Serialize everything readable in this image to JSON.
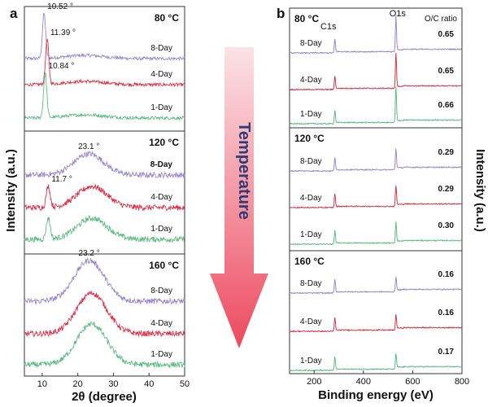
{
  "panel_labels": {
    "a": "a",
    "b": "b"
  },
  "arrow_label": "Temperature",
  "colors": {
    "8-Day": "#9a88cc",
    "4-Day": "#d8344a",
    "1-Day": "#5dbb82"
  },
  "chart_data": [
    {
      "id": "a",
      "type": "line",
      "xlabel": "2θ (degree)",
      "ylabel": "Intensity (a.u.)",
      "xlim": [
        5,
        50
      ],
      "xticks": [
        "10",
        "20",
        "30",
        "40",
        "50"
      ],
      "yticks": "none",
      "grid": false,
      "panels": [
        {
          "temperature": "80 °C",
          "series": [
            {
              "name": "8-Day",
              "peaks": [
                {
                  "x": 10.52,
                  "label": "10.52 °"
                }
              ]
            },
            {
              "name": "4-Day",
              "peaks": [
                {
                  "x": 11.39,
                  "label": "11.39 °"
                }
              ]
            },
            {
              "name": "1-Day",
              "peaks": [
                {
                  "x": 10.84,
                  "label": "10.84 °"
                }
              ]
            }
          ]
        },
        {
          "temperature": "120 °C",
          "series": [
            {
              "name": "8-Day",
              "peaks": [
                {
                  "x": 23.1,
                  "label": "23.1 °"
                }
              ]
            },
            {
              "name": "4-Day",
              "peaks": [
                {
                  "x": 11.7,
                  "label": "11.7 °"
                },
                {
                  "x": 24
                }
              ]
            },
            {
              "name": "1-Day",
              "peaks": [
                {
                  "x": 11.7
                },
                {
                  "x": 24
                }
              ]
            }
          ]
        },
        {
          "temperature": "160 °C",
          "series": [
            {
              "name": "8-Day",
              "peaks": [
                {
                  "x": 23.2,
                  "label": "23.2 °"
                }
              ]
            },
            {
              "name": "4-Day",
              "peaks": [
                {
                  "x": 23.9
                }
              ]
            },
            {
              "name": "1-Day",
              "peaks": [
                {
                  "x": 23.9
                }
              ]
            }
          ]
        }
      ]
    },
    {
      "id": "b",
      "type": "line",
      "xlabel": "Binding energy (eV)",
      "ylabel": "Intensity (a.u.)",
      "xlim": [
        100,
        800
      ],
      "xticks": [
        "200",
        "400",
        "600",
        "800"
      ],
      "peak_labels": [
        {
          "x": 284,
          "label": "C1s"
        },
        {
          "x": 532,
          "label": "O1s"
        }
      ],
      "ratio_header": "O/C ratio",
      "panels": [
        {
          "temperature": "80 °C",
          "series": [
            {
              "name": "8-Day",
              "oc_ratio": "0.65"
            },
            {
              "name": "4-Day",
              "oc_ratio": "0.65"
            },
            {
              "name": "1-Day",
              "oc_ratio": "0.66"
            }
          ]
        },
        {
          "temperature": "120 °C",
          "series": [
            {
              "name": "8-Day",
              "oc_ratio": "0.29"
            },
            {
              "name": "4-Day",
              "oc_ratio": "0.29"
            },
            {
              "name": "1-Day",
              "oc_ratio": "0.30"
            }
          ]
        },
        {
          "temperature": "160 °C",
          "series": [
            {
              "name": "8-Day",
              "oc_ratio": "0.16"
            },
            {
              "name": "4-Day",
              "oc_ratio": "0.16"
            },
            {
              "name": "1-Day",
              "oc_ratio": "0.17"
            }
          ]
        }
      ]
    }
  ]
}
